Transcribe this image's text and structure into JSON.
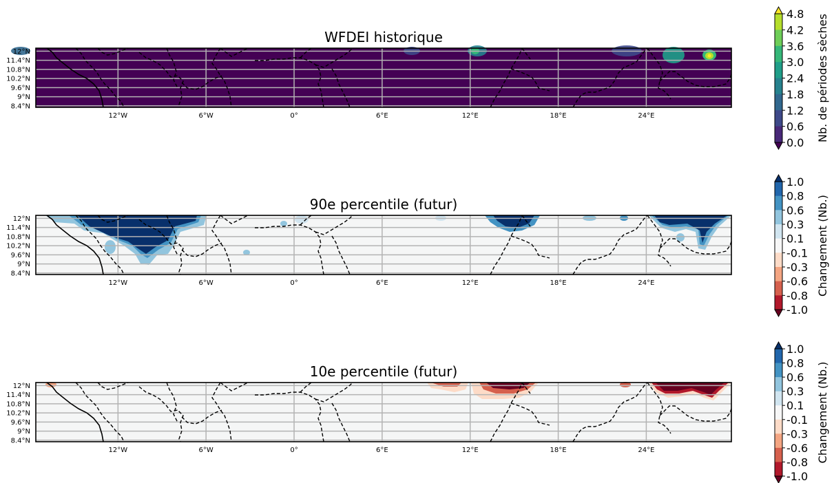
{
  "panels": [
    {
      "title": "WFDEI historique",
      "colorbar": {
        "label": "Nb. de périodes sèches",
        "ticks": [
          "4.8",
          "4.2",
          "3.6",
          "3.0",
          "2.4",
          "1.8",
          "1.2",
          "0.6",
          "0.0"
        ],
        "colors": [
          "#fde725",
          "#b5de2b",
          "#6ece58",
          "#35b779",
          "#1f9e89",
          "#26828e",
          "#31688e",
          "#3e4989",
          "#482878",
          "#440154"
        ]
      },
      "background": "#440154"
    },
    {
      "title": "90e percentile (futur)",
      "colorbar": {
        "label": "Changement (Nb.)",
        "ticks": [
          "1.0",
          "0.8",
          "0.6",
          "0.3",
          "0.1",
          "-0.1",
          "-0.3",
          "-0.6",
          "-0.8",
          "-1.0"
        ],
        "colors": [
          "#08306b",
          "#2166ac",
          "#4393c3",
          "#92c5de",
          "#d1e5f0",
          "#f7f7f7",
          "#fddbc7",
          "#f4a582",
          "#d6604d",
          "#b2182b",
          "#67001f"
        ]
      },
      "background": "#f5f6f6"
    },
    {
      "title": "10e percentile (futur)",
      "colorbar": {
        "label": "Changement (Nb.)",
        "ticks": [
          "1.0",
          "0.8",
          "0.6",
          "0.3",
          "0.1",
          "-0.1",
          "-0.3",
          "-0.6",
          "-0.8",
          "-1.0"
        ],
        "colors": [
          "#08306b",
          "#2166ac",
          "#4393c3",
          "#92c5de",
          "#d1e5f0",
          "#f7f7f7",
          "#fddbc7",
          "#f4a582",
          "#d6604d",
          "#b2182b",
          "#67001f"
        ]
      },
      "background": "#f5f6f6"
    }
  ],
  "chart_data": {
    "type": "heatmap",
    "x_ticks": [
      {
        "label": "12°W",
        "value": -12
      },
      {
        "label": "6°W",
        "value": -6
      },
      {
        "label": "0°",
        "value": 0
      },
      {
        "label": "6°E",
        "value": 6
      },
      {
        "label": "12°E",
        "value": 12
      },
      {
        "label": "18°E",
        "value": 18
      },
      {
        "label": "24°E",
        "value": 24
      }
    ],
    "y_ticks": [
      {
        "label": "12°N",
        "value": 12.0
      },
      {
        "label": "11.4°N",
        "value": 11.4
      },
      {
        "label": "10.8°N",
        "value": 10.8
      },
      {
        "label": "10.2°N",
        "value": 10.2
      },
      {
        "label": "9.6°N",
        "value": 9.6
      },
      {
        "label": "9°N",
        "value": 9.0
      },
      {
        "label": "8.4°N",
        "value": 8.4
      }
    ],
    "xlim": [
      -17.6,
      29.8
    ],
    "ylim": [
      8.3,
      12.2
    ],
    "grid": true,
    "max_value_panel1": 4.8
  }
}
